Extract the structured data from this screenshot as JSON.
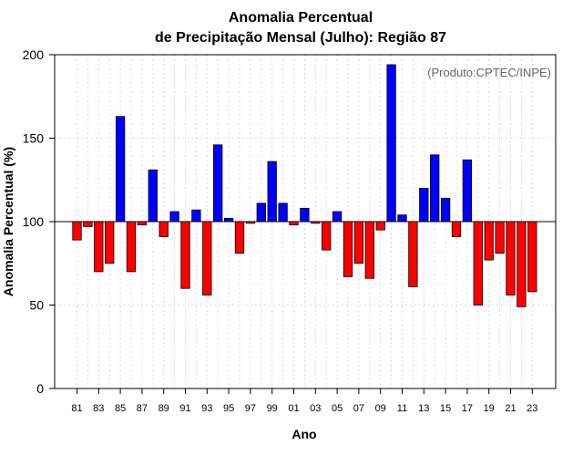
{
  "chart_data": {
    "type": "bar",
    "title": "Anomalia Percentual",
    "subtitle": "de Precipitação Mensal (Julho): Região 87",
    "xlabel": "Ano",
    "ylabel": "Anomalia Percentual (%)",
    "credit": "(Produto:CPTEC/INPE)",
    "baseline": 100,
    "ylim": [
      0,
      200
    ],
    "yticks": [
      0,
      50,
      100,
      150,
      200
    ],
    "grid": true,
    "colors": {
      "above": "#0000ff",
      "below": "#ff0000"
    },
    "categories": [
      "81",
      "82",
      "83",
      "84",
      "85",
      "86",
      "87",
      "88",
      "89",
      "90",
      "91",
      "92",
      "93",
      "94",
      "95",
      "96",
      "97",
      "98",
      "99",
      "00",
      "01",
      "02",
      "03",
      "04",
      "05",
      "06",
      "07",
      "08",
      "09",
      "10",
      "11",
      "12",
      "13",
      "14",
      "15",
      "16",
      "17",
      "18",
      "19",
      "20",
      "21",
      "22",
      "23"
    ],
    "xtick_labels": [
      "81",
      "83",
      "85",
      "87",
      "89",
      "91",
      "93",
      "95",
      "97",
      "99",
      "01",
      "03",
      "05",
      "07",
      "09",
      "11",
      "13",
      "15",
      "17",
      "19",
      "21",
      "23"
    ],
    "values": [
      89,
      97,
      70,
      75,
      163,
      70,
      98,
      131,
      91,
      106,
      60,
      107,
      56,
      146,
      102,
      81,
      99,
      111,
      136,
      111,
      98,
      108,
      99,
      83,
      106,
      67,
      75,
      66,
      95,
      194,
      104,
      61,
      120,
      140,
      114,
      91,
      137,
      50,
      77,
      81,
      56,
      49,
      58
    ]
  }
}
